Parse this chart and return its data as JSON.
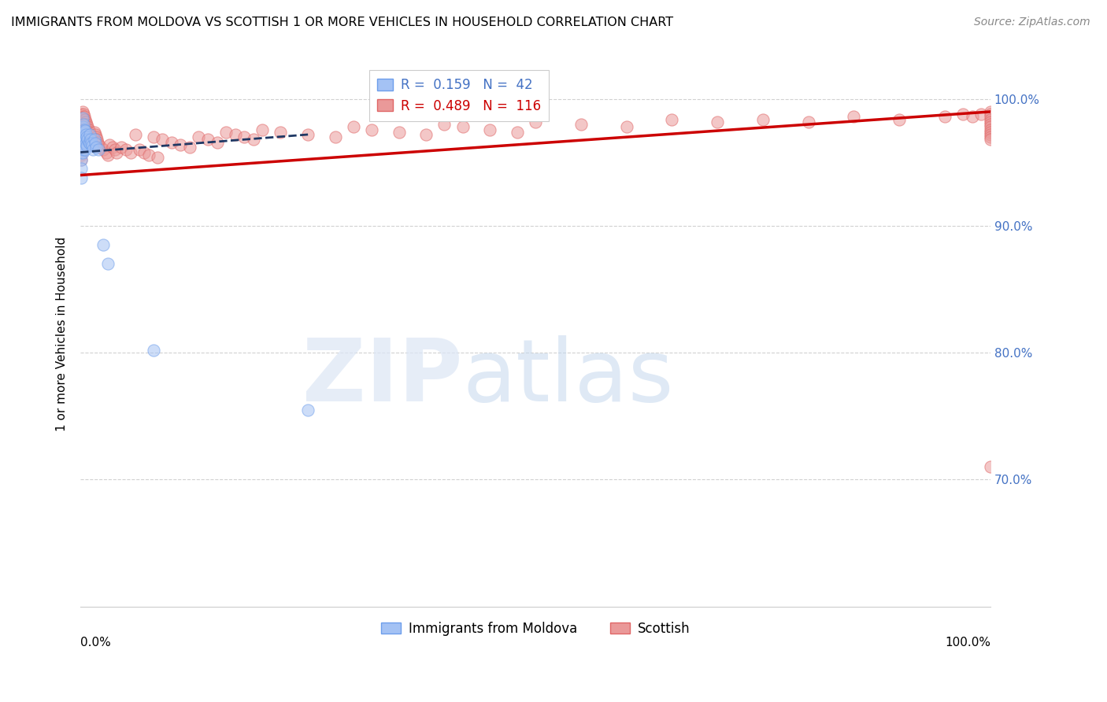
{
  "title": "IMMIGRANTS FROM MOLDOVA VS SCOTTISH 1 OR MORE VEHICLES IN HOUSEHOLD CORRELATION CHART",
  "source": "Source: ZipAtlas.com",
  "ylabel": "1 or more Vehicles in Household",
  "legend_label1": "Immigrants from Moldova",
  "legend_label2": "Scottish",
  "blue_color": "#a4c2f4",
  "blue_edge_color": "#6d9eeb",
  "pink_color": "#ea9999",
  "pink_edge_color": "#e06666",
  "blue_line_color": "#1f3864",
  "pink_line_color": "#cc0000",
  "grid_color": "#cccccc",
  "R_blue": 0.159,
  "N_blue": 42,
  "R_pink": 0.489,
  "N_pink": 116,
  "xlim": [
    0.0,
    1.0
  ],
  "ylim": [
    0.6,
    1.03
  ],
  "yticks": [
    1.0,
    0.9,
    0.8,
    0.7
  ],
  "ytick_labels": [
    "100.0%",
    "90.0%",
    "80.0%",
    "70.0%"
  ],
  "title_fontsize": 11.5,
  "source_fontsize": 10,
  "tick_fontsize": 11,
  "ylabel_fontsize": 11,
  "legend_fontsize": 12,
  "scatter_size": 120,
  "scatter_alpha": 0.55,
  "blue_x": [
    0.0005,
    0.001,
    0.001,
    0.001,
    0.001,
    0.001,
    0.001,
    0.002,
    0.002,
    0.002,
    0.002,
    0.002,
    0.003,
    0.003,
    0.003,
    0.003,
    0.004,
    0.004,
    0.004,
    0.005,
    0.005,
    0.005,
    0.006,
    0.006,
    0.007,
    0.007,
    0.008,
    0.009,
    0.01,
    0.01,
    0.011,
    0.012,
    0.013,
    0.014,
    0.015,
    0.016,
    0.017,
    0.02,
    0.025,
    0.03,
    0.08,
    0.25
  ],
  "blue_y": [
    0.972,
    0.968,
    0.963,
    0.958,
    0.952,
    0.945,
    0.938,
    0.985,
    0.978,
    0.972,
    0.966,
    0.958,
    0.98,
    0.974,
    0.968,
    0.96,
    0.976,
    0.97,
    0.963,
    0.975,
    0.968,
    0.96,
    0.972,
    0.965,
    0.97,
    0.963,
    0.968,
    0.966,
    0.972,
    0.965,
    0.968,
    0.965,
    0.963,
    0.96,
    0.968,
    0.965,
    0.962,
    0.96,
    0.885,
    0.87,
    0.802,
    0.755
  ],
  "pink_x": [
    0.001,
    0.001,
    0.001,
    0.001,
    0.001,
    0.001,
    0.001,
    0.001,
    0.001,
    0.001,
    0.002,
    0.002,
    0.002,
    0.002,
    0.002,
    0.002,
    0.002,
    0.003,
    0.003,
    0.003,
    0.003,
    0.003,
    0.004,
    0.004,
    0.004,
    0.004,
    0.005,
    0.005,
    0.005,
    0.006,
    0.006,
    0.006,
    0.007,
    0.007,
    0.008,
    0.008,
    0.009,
    0.009,
    0.01,
    0.01,
    0.011,
    0.012,
    0.013,
    0.014,
    0.015,
    0.016,
    0.017,
    0.018,
    0.019,
    0.02,
    0.022,
    0.025,
    0.028,
    0.03,
    0.032,
    0.035,
    0.038,
    0.04,
    0.045,
    0.05,
    0.055,
    0.06,
    0.065,
    0.07,
    0.075,
    0.08,
    0.085,
    0.09,
    0.1,
    0.11,
    0.12,
    0.13,
    0.14,
    0.15,
    0.16,
    0.17,
    0.18,
    0.19,
    0.2,
    0.22,
    0.25,
    0.28,
    0.3,
    0.32,
    0.35,
    0.38,
    0.4,
    0.42,
    0.45,
    0.48,
    0.5,
    0.55,
    0.6,
    0.65,
    0.7,
    0.75,
    0.8,
    0.85,
    0.9,
    0.95,
    0.97,
    0.98,
    0.99,
    1.0,
    1.0,
    1.0,
    1.0,
    1.0,
    1.0,
    1.0,
    1.0,
    1.0,
    1.0,
    1.0,
    1.0,
    1.0
  ],
  "pink_y": [
    0.988,
    0.984,
    0.98,
    0.976,
    0.972,
    0.968,
    0.964,
    0.96,
    0.956,
    0.952,
    0.99,
    0.986,
    0.982,
    0.978,
    0.974,
    0.97,
    0.966,
    0.988,
    0.984,
    0.98,
    0.976,
    0.972,
    0.986,
    0.982,
    0.978,
    0.974,
    0.984,
    0.98,
    0.976,
    0.982,
    0.978,
    0.974,
    0.98,
    0.976,
    0.978,
    0.974,
    0.976,
    0.972,
    0.974,
    0.97,
    0.972,
    0.97,
    0.968,
    0.966,
    0.974,
    0.972,
    0.97,
    0.968,
    0.966,
    0.964,
    0.962,
    0.96,
    0.958,
    0.956,
    0.964,
    0.962,
    0.96,
    0.958,
    0.962,
    0.96,
    0.958,
    0.972,
    0.96,
    0.958,
    0.956,
    0.97,
    0.954,
    0.968,
    0.966,
    0.964,
    0.962,
    0.97,
    0.968,
    0.966,
    0.974,
    0.972,
    0.97,
    0.968,
    0.976,
    0.974,
    0.972,
    0.97,
    0.978,
    0.976,
    0.974,
    0.972,
    0.98,
    0.978,
    0.976,
    0.974,
    0.982,
    0.98,
    0.978,
    0.984,
    0.982,
    0.984,
    0.982,
    0.986,
    0.984,
    0.986,
    0.988,
    0.986,
    0.988,
    0.99,
    0.988,
    0.986,
    0.984,
    0.982,
    0.98,
    0.978,
    0.976,
    0.974,
    0.972,
    0.97,
    0.968,
    0.71
  ],
  "blue_line_x": [
    0.0,
    0.25
  ],
  "blue_line_y_start": 0.958,
  "blue_line_y_end": 0.972,
  "pink_line_x": [
    0.0,
    1.0
  ],
  "pink_line_y_start": 0.94,
  "pink_line_y_end": 0.99
}
